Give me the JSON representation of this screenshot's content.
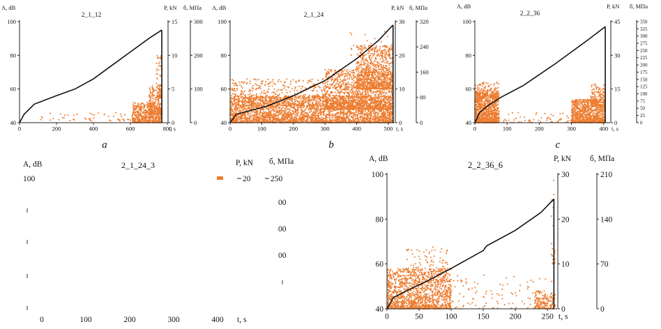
{
  "colors": {
    "scatter": "#ed7d31",
    "curve": "#111111",
    "axis": "#222222"
  },
  "panel_labels": [
    "a",
    "b",
    "c"
  ],
  "chart_data": [
    {
      "type": "scatter",
      "title": "2_1_12",
      "ylabel": "A, dB",
      "xlabel": "t, s",
      "y2label": "P, kN",
      "y3label": "б, МПа",
      "xlim": [
        0,
        800
      ],
      "ylim": [
        40,
        100
      ],
      "y2lim": [
        0,
        15
      ],
      "y3lim": [
        0,
        300
      ],
      "x_ticks": [
        0,
        200,
        400,
        600,
        800
      ],
      "y_ticks": [
        40,
        60,
        80,
        100
      ],
      "y2_ticks": [
        0,
        5,
        10,
        15
      ],
      "y3_ticks": [
        0,
        100,
        200,
        300
      ],
      "end_time": 770,
      "curve": [
        [
          0,
          40
        ],
        [
          25,
          45
        ],
        [
          80,
          51
        ],
        [
          200,
          56
        ],
        [
          300,
          60
        ],
        [
          400,
          66
        ],
        [
          500,
          74
        ],
        [
          600,
          82
        ],
        [
          700,
          90
        ],
        [
          770,
          95
        ]
      ],
      "clusters": [
        {
          "x": [
            110,
            760
          ],
          "y": [
            41,
            46
          ],
          "n": 60
        },
        {
          "x": [
            610,
            770
          ],
          "y": [
            40,
            52
          ],
          "n": 500
        },
        {
          "x": [
            700,
            770
          ],
          "y": [
            45,
            62
          ],
          "n": 220
        },
        {
          "x": [
            740,
            770
          ],
          "y": [
            55,
            80
          ],
          "n": 60
        }
      ]
    },
    {
      "type": "scatter",
      "title": "2_1_24",
      "ylabel": "A, dB",
      "xlabel": "t, s",
      "y2label": "P, kN",
      "y3label": "б, МПа",
      "xlim": [
        0,
        520
      ],
      "ylim": [
        40,
        100
      ],
      "y2lim": [
        0,
        30
      ],
      "y3lim": [
        0,
        320
      ],
      "x_ticks": [
        0,
        100,
        200,
        300,
        400,
        500
      ],
      "y_ticks": [
        40,
        60,
        80,
        100
      ],
      "y2_ticks": [
        0,
        10,
        20,
        30
      ],
      "y3_ticks": [
        0,
        80,
        160,
        240,
        320
      ],
      "end_time": 515,
      "curve": [
        [
          0,
          40
        ],
        [
          20,
          45
        ],
        [
          60,
          47
        ],
        [
          120,
          50
        ],
        [
          200,
          56
        ],
        [
          300,
          65
        ],
        [
          400,
          78
        ],
        [
          470,
          89
        ],
        [
          515,
          98
        ]
      ],
      "clusters": [
        {
          "x": [
            0,
            515
          ],
          "y": [
            40,
            56
          ],
          "n": 3000
        },
        {
          "x": [
            0,
            300
          ],
          "y": [
            50,
            66
          ],
          "n": 450
        },
        {
          "x": [
            300,
            515
          ],
          "y": [
            48,
            72
          ],
          "n": 1300
        },
        {
          "x": [
            400,
            515
          ],
          "y": [
            60,
            86
          ],
          "n": 700
        },
        {
          "x": [
            380,
            515
          ],
          "y": [
            80,
            96
          ],
          "n": 35
        }
      ]
    },
    {
      "type": "scatter",
      "title": "2_2_36",
      "ylabel": "A, dB",
      "xlabel": "t, s",
      "y2label": "P, kN",
      "y3label": "б, МПа",
      "xlim": [
        0,
        420
      ],
      "ylim": [
        40,
        100
      ],
      "y2lim": [
        0,
        45
      ],
      "y3lim": [
        0,
        350
      ],
      "x_ticks": [
        0,
        100,
        200,
        300,
        400
      ],
      "y_ticks": [
        40,
        60,
        80,
        100
      ],
      "y2_ticks": [
        0,
        15,
        30,
        45
      ],
      "y3_ticks": [
        0,
        25,
        50,
        75,
        100,
        125,
        150,
        175,
        200,
        225,
        250,
        275,
        300,
        325,
        350
      ],
      "end_time": 405,
      "curve": [
        [
          0,
          40
        ],
        [
          15,
          46
        ],
        [
          40,
          50
        ],
        [
          80,
          55
        ],
        [
          150,
          62
        ],
        [
          250,
          75
        ],
        [
          300,
          82
        ],
        [
          350,
          89
        ],
        [
          405,
          97
        ]
      ],
      "clusters": [
        {
          "x": [
            0,
            75
          ],
          "y": [
            40,
            58
          ],
          "n": 1000
        },
        {
          "x": [
            0,
            75
          ],
          "y": [
            55,
            64
          ],
          "n": 140
        },
        {
          "x": [
            75,
            310
          ],
          "y": [
            40,
            46
          ],
          "n": 60
        },
        {
          "x": [
            300,
            405
          ],
          "y": [
            40,
            54
          ],
          "n": 900
        },
        {
          "x": [
            360,
            405
          ],
          "y": [
            50,
            63
          ],
          "n": 160
        }
      ]
    },
    {
      "type": "scatter",
      "title": "2_1_24_3",
      "ylabel": "A, dB",
      "xlabel": "t, s",
      "y2label": "P, kN",
      "y3label": "б, МПа",
      "x_ticks_visible": [
        "0",
        "100",
        "200",
        "300",
        "400"
      ],
      "y_tick_top": "100",
      "y2_tick_top": "20",
      "y3_tick_top": "250",
      "y3_ticks_visible": [
        "00",
        "00",
        "00"
      ],
      "legend_marker": true
    },
    {
      "type": "scatter",
      "title": "2_2_36_6",
      "ylabel": "A, dB",
      "xlabel": "t, s",
      "y2label": "P, kN",
      "y3label": "б, МПа",
      "xlim": [
        0,
        265
      ],
      "ylim": [
        40,
        100
      ],
      "y2lim": [
        0,
        30
      ],
      "y3lim": [
        0,
        210
      ],
      "x_ticks": [
        0,
        50,
        100,
        150,
        200,
        250
      ],
      "y_ticks": [
        40,
        60,
        80,
        100
      ],
      "y2_ticks": [
        0,
        10,
        20,
        30
      ],
      "y3_ticks": [
        0,
        70,
        140,
        210
      ],
      "end_time": 260,
      "curve": [
        [
          0,
          40
        ],
        [
          10,
          45
        ],
        [
          30,
          48
        ],
        [
          60,
          52
        ],
        [
          100,
          58
        ],
        [
          150,
          66
        ],
        [
          155,
          68
        ],
        [
          200,
          75
        ],
        [
          240,
          83
        ],
        [
          260,
          89
        ]
      ],
      "clusters": [
        {
          "x": [
            0,
            100
          ],
          "y": [
            40,
            58
          ],
          "n": 1300
        },
        {
          "x": [
            30,
            95
          ],
          "y": [
            55,
            68
          ],
          "n": 100
        },
        {
          "x": [
            100,
            260
          ],
          "y": [
            40,
            56
          ],
          "n": 110
        },
        {
          "x": [
            230,
            262
          ],
          "y": [
            40,
            48
          ],
          "n": 160
        },
        {
          "x": [
            255,
            262
          ],
          "y": [
            60,
            100
          ],
          "n": 25
        }
      ]
    }
  ]
}
